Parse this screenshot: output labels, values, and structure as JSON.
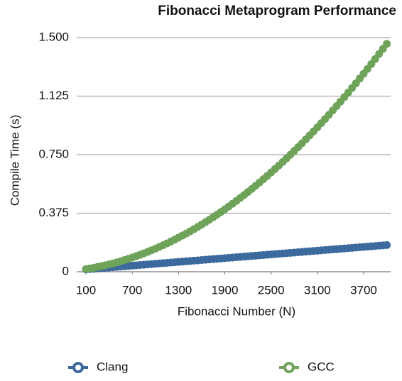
{
  "chart_data": {
    "type": "scatter",
    "title": "Fibonacci Metaprogram Performance",
    "xlabel": "Fibonacci Number (N)",
    "ylabel": "Compile Time (s)",
    "x": [
      100,
      150,
      200,
      250,
      300,
      350,
      400,
      450,
      500,
      550,
      600,
      650,
      700,
      750,
      800,
      850,
      900,
      950,
      1000,
      1050,
      1100,
      1150,
      1200,
      1250,
      1300,
      1350,
      1400,
      1450,
      1500,
      1550,
      1600,
      1650,
      1700,
      1750,
      1800,
      1850,
      1900,
      1950,
      2000,
      2050,
      2100,
      2150,
      2200,
      2250,
      2300,
      2350,
      2400,
      2450,
      2500,
      2550,
      2600,
      2650,
      2700,
      2750,
      2800,
      2850,
      2900,
      2950,
      3000,
      3050,
      3100,
      3150,
      3200,
      3250,
      3300,
      3350,
      3400,
      3450,
      3500,
      3550,
      3600,
      3650,
      3700,
      3750,
      3800,
      3850,
      3900,
      3950,
      4000
    ],
    "series": [
      {
        "name": "Clang",
        "color": "#3d6a9e",
        "values": [
          0.015,
          0.017,
          0.019,
          0.021,
          0.023,
          0.025,
          0.027,
          0.029,
          0.031,
          0.033,
          0.035,
          0.037,
          0.039,
          0.041,
          0.043,
          0.045,
          0.047,
          0.049,
          0.051,
          0.053,
          0.055,
          0.057,
          0.059,
          0.061,
          0.063,
          0.065,
          0.067,
          0.069,
          0.071,
          0.073,
          0.075,
          0.077,
          0.079,
          0.081,
          0.083,
          0.085,
          0.087,
          0.089,
          0.091,
          0.093,
          0.095,
          0.097,
          0.099,
          0.101,
          0.103,
          0.105,
          0.107,
          0.109,
          0.111,
          0.113,
          0.115,
          0.117,
          0.119,
          0.121,
          0.123,
          0.125,
          0.127,
          0.129,
          0.131,
          0.133,
          0.135,
          0.137,
          0.139,
          0.141,
          0.143,
          0.145,
          0.147,
          0.149,
          0.151,
          0.153,
          0.155,
          0.157,
          0.159,
          0.161,
          0.163,
          0.165,
          0.167,
          0.169,
          0.171
        ]
      },
      {
        "name": "GCC",
        "color": "#6fa35a",
        "values": [
          0.017,
          0.0211,
          0.0256,
          0.0304,
          0.0356,
          0.0412,
          0.0472,
          0.0535,
          0.0602,
          0.0673,
          0.0748,
          0.0826,
          0.0908,
          0.0994,
          0.1083,
          0.1177,
          0.1274,
          0.1374,
          0.1479,
          0.1587,
          0.1699,
          0.1815,
          0.1935,
          0.2058,
          0.2185,
          0.2316,
          0.245,
          0.2588,
          0.273,
          0.2876,
          0.3025,
          0.3179,
          0.3336,
          0.3496,
          0.3661,
          0.3829,
          0.4001,
          0.4177,
          0.4356,
          0.4539,
          0.4726,
          0.4917,
          0.5111,
          0.5309,
          0.5511,
          0.5717,
          0.5926,
          0.6139,
          0.6356,
          0.6577,
          0.6801,
          0.7029,
          0.7261,
          0.7497,
          0.7736,
          0.7979,
          0.8226,
          0.8477,
          0.8731,
          0.8989,
          0.9251,
          0.9516,
          0.9786,
          1.0059,
          1.0336,
          1.0616,
          1.09,
          1.1188,
          1.148,
          1.1776,
          1.2075,
          1.2378,
          1.2685,
          1.2995,
          1.331,
          1.3628,
          1.3949,
          1.4275,
          1.4604
        ]
      }
    ],
    "xlim": [
      -20,
      4050
    ],
    "xticks": [
      100,
      700,
      1300,
      1900,
      2500,
      3100,
      3700
    ],
    "ylim": [
      0,
      1.5
    ],
    "yticks": [
      0,
      0.375,
      {
        "value": 0.75,
        "label": "0.750"
      },
      1.125,
      {
        "value": 1.5,
        "label": "1.500"
      }
    ],
    "grid": true
  }
}
